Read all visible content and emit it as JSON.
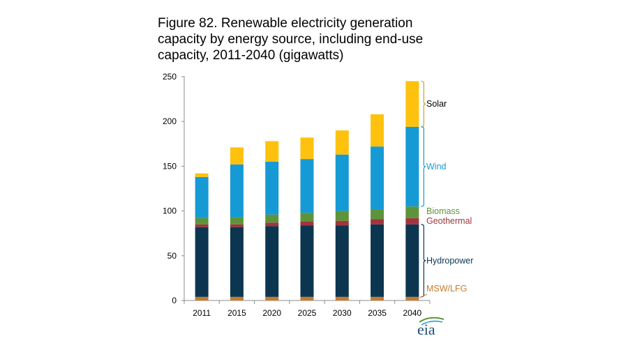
{
  "chart_data": {
    "type": "bar",
    "stacked": true,
    "title_lines": [
      "Figure 82. Renewable electricity generation",
      "capacity by energy source, including end-use",
      "capacity, 2011-2040 (gigawatts)"
    ],
    "categories": [
      "2011",
      "2015",
      "2020",
      "2025",
      "2030",
      "2035",
      "2040"
    ],
    "ylim": [
      0,
      250
    ],
    "yticks": [
      0,
      50,
      100,
      150,
      200,
      250
    ],
    "xlabel": "",
    "ylabel": "",
    "series": [
      {
        "name": "MSW/LFG",
        "color": "#c97a2b",
        "values": [
          4,
          4,
          4,
          4,
          4,
          4,
          4
        ]
      },
      {
        "name": "Hydropower",
        "color": "#0c3650",
        "values": [
          78,
          78,
          79,
          80,
          80,
          81,
          81
        ]
      },
      {
        "name": "Geothermal",
        "color": "#a3343d",
        "values": [
          3,
          3,
          4,
          4,
          5,
          6,
          7
        ]
      },
      {
        "name": "Biomass",
        "color": "#5d943b",
        "values": [
          7,
          8,
          9,
          10,
          11,
          11,
          13
        ]
      },
      {
        "name": "Wind",
        "color": "#169ad5",
        "values": [
          46,
          59,
          59,
          60,
          63,
          70,
          89
        ]
      },
      {
        "name": "Solar",
        "color": "#fec20e",
        "values": [
          4,
          19,
          23,
          24,
          27,
          36,
          51
        ]
      }
    ],
    "legend_labels": [
      {
        "name": "Solar",
        "color": "#000000"
      },
      {
        "name": "Wind",
        "color": "#169ad5"
      },
      {
        "name": "Biomass",
        "color": "#5d943b"
      },
      {
        "name": "Geothermal",
        "color": "#a3343d"
      },
      {
        "name": "Hydropower",
        "color": "#0c3650"
      },
      {
        "name": "MSW/LFG",
        "color": "#c97a2b"
      }
    ]
  },
  "logo_text": "eia"
}
